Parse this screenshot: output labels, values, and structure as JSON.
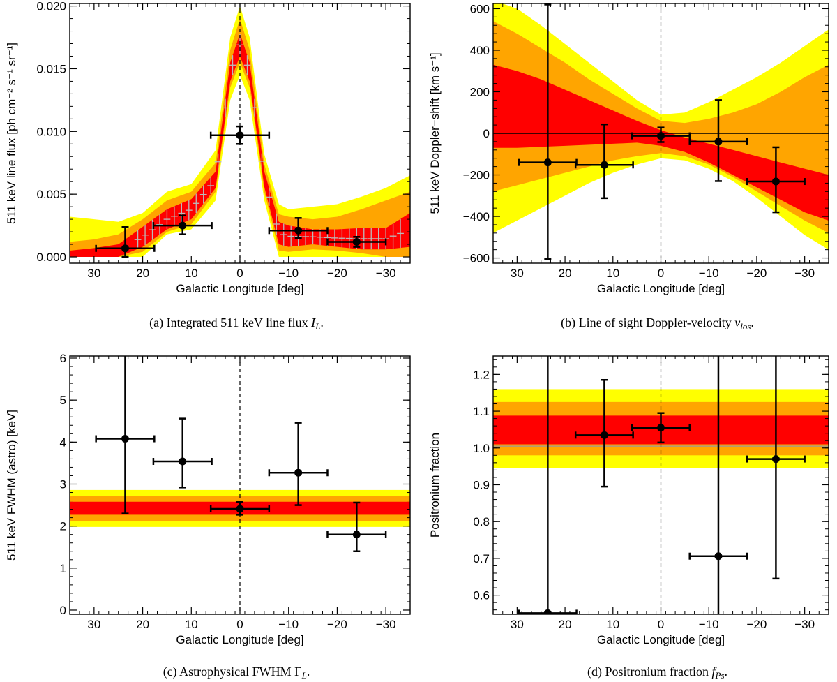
{
  "colors": {
    "yellow": "#ffff00",
    "orange": "#ffa500",
    "red": "#ff0000",
    "point": "#000000",
    "gray": "#bbbbbb"
  },
  "chart_data": [
    {
      "id": "a",
      "type": "line",
      "caption": "(a) Integrated 511 keV line flux I_L.",
      "xlabel": "Galactic Longitude [deg]",
      "ylabel": "511 keV line flux [ph cm⁻² s⁻¹ sr⁻¹]",
      "xlim": [
        35,
        -35
      ],
      "ylim": [
        -0.0005,
        0.0202
      ],
      "xticks": [
        30,
        20,
        10,
        0,
        -10,
        -20,
        -30
      ],
      "xtick_labels": [
        "30",
        "20",
        "10",
        "0",
        "−10",
        "−20",
        "−30"
      ],
      "yticks": [
        0.0,
        0.005,
        0.01,
        0.015,
        0.02
      ],
      "ytick_labels": [
        "0.000",
        "0.005",
        "0.010",
        "0.015",
        "0.020"
      ],
      "zero_line": false,
      "band_x": [
        35,
        30,
        25,
        20,
        15,
        10,
        5,
        2,
        0,
        -2,
        -5,
        -8,
        -10,
        -15,
        -20,
        -25,
        -30,
        -35
      ],
      "bands": {
        "yellow": {
          "lo": [
            0,
            0,
            0,
            0,
            0.0018,
            0.0022,
            0.0045,
            0.0125,
            0.0145,
            0.0125,
            0.0045,
            0,
            0,
            0,
            0,
            0,
            0,
            0
          ],
          "hi": [
            0.0032,
            0.003,
            0.0028,
            0.0035,
            0.0052,
            0.0058,
            0.0085,
            0.0175,
            0.02,
            0.0175,
            0.0082,
            0.0042,
            0.0038,
            0.004,
            0.0042,
            0.0048,
            0.0055,
            0.0065
          ]
        },
        "orange": {
          "lo": [
            0,
            0,
            0,
            0.0004,
            0.002,
            0.0026,
            0.0052,
            0.0135,
            0.0155,
            0.0135,
            0.0052,
            0.0005,
            0.0004,
            0.0006,
            0.0005,
            0.0003,
            0,
            0
          ],
          "hi": [
            0.0012,
            0.0014,
            0.0018,
            0.003,
            0.0045,
            0.0052,
            0.0075,
            0.0165,
            0.019,
            0.0165,
            0.0074,
            0.0034,
            0.0032,
            0.003,
            0.0032,
            0.0038,
            0.0045,
            0.0052
          ]
        },
        "red": {
          "lo": [
            0,
            0,
            0,
            0.0008,
            0.0022,
            0.003,
            0.0055,
            0.014,
            0.016,
            0.014,
            0.0056,
            0.001,
            0.0008,
            0.001,
            0.0008,
            0.0006,
            0.0006,
            0.0008
          ],
          "hi": [
            0.0005,
            0.0007,
            0.001,
            0.0024,
            0.0038,
            0.0046,
            0.0068,
            0.0155,
            0.0178,
            0.0155,
            0.0068,
            0.0028,
            0.0025,
            0.0022,
            0.0022,
            0.0023,
            0.0023,
            0.0035
          ]
        }
      },
      "points": [
        {
          "x": 23.6,
          "xerr": [
            6.0,
            6.0
          ],
          "y": 0.00068,
          "yerr": [
            0.00068,
            0.0017
          ]
        },
        {
          "x": 11.8,
          "xerr": [
            6.0,
            6.0
          ],
          "y": 0.0025,
          "yerr": [
            0.0007,
            0.0008
          ]
        },
        {
          "x": 0.0,
          "xerr": [
            6.0,
            6.0
          ],
          "y": 0.0097,
          "yerr": [
            0.0007,
            0.0007
          ]
        },
        {
          "x": -12.0,
          "xerr": [
            6.0,
            6.0
          ],
          "y": 0.0021,
          "yerr": [
            0.0006,
            0.001
          ]
        },
        {
          "x": -24.0,
          "xerr": [
            6.0,
            6.0
          ],
          "y": 0.0012,
          "yerr": [
            0.0004,
            0.0004
          ]
        }
      ]
    },
    {
      "id": "b",
      "type": "line",
      "caption": "(b) Line of sight Doppler-velocity v_los.",
      "xlabel": "Galactic Longitude [deg]",
      "ylabel": "511 keV Doppler−shift [km s⁻¹]",
      "xlim": [
        35,
        -35
      ],
      "ylim": [
        -625,
        625
      ],
      "xticks": [
        30,
        20,
        10,
        0,
        -10,
        -20,
        -30
      ],
      "xtick_labels": [
        "30",
        "20",
        "10",
        "0",
        "−10",
        "−20",
        "−30"
      ],
      "yticks": [
        -600,
        -400,
        -200,
        0,
        200,
        400,
        600
      ],
      "ytick_labels": [
        "−600",
        "−400",
        "−200",
        "0",
        "200",
        "400",
        "600"
      ],
      "zero_line": true,
      "band_x": [
        35,
        30,
        25,
        20,
        15,
        10,
        5,
        0,
        -5,
        -10,
        -15,
        -20,
        -25,
        -30,
        -35
      ],
      "bands": {
        "yellow": {
          "lo": [
            -480,
            -420,
            -360,
            -300,
            -240,
            -190,
            -150,
            -120,
            -130,
            -170,
            -230,
            -310,
            -400,
            -490,
            -560
          ],
          "hi": [
            640,
            600,
            520,
            430,
            340,
            250,
            160,
            90,
            100,
            150,
            210,
            270,
            340,
            420,
            500
          ]
        },
        "orange": {
          "lo": [
            -280,
            -250,
            -220,
            -190,
            -160,
            -130,
            -110,
            -95,
            -110,
            -150,
            -210,
            -280,
            -350,
            -420,
            -480
          ],
          "hi": [
            540,
            480,
            410,
            340,
            260,
            190,
            120,
            60,
            50,
            70,
            100,
            140,
            200,
            270,
            330
          ]
        },
        "red": {
          "lo": [
            -70,
            -70,
            -65,
            -60,
            -55,
            -50,
            -45,
            -60,
            -90,
            -140,
            -200,
            -260,
            -320,
            -380,
            -420
          ],
          "hi": [
            330,
            300,
            260,
            210,
            160,
            110,
            60,
            15,
            -20,
            -50,
            -80,
            -110,
            -140,
            -170,
            -200
          ]
        }
      },
      "points": [
        {
          "x": 23.6,
          "xerr": [
            6.0,
            6.0
          ],
          "y": -140,
          "yerr": [
            465,
            760
          ]
        },
        {
          "x": 11.8,
          "xerr": [
            6.0,
            6.0
          ],
          "y": -152,
          "yerr": [
            160,
            195
          ]
        },
        {
          "x": 0.0,
          "xerr": [
            6.0,
            6.0
          ],
          "y": -12,
          "yerr": [
            30,
            40
          ]
        },
        {
          "x": -12.0,
          "xerr": [
            6.0,
            6.0
          ],
          "y": -40,
          "yerr": [
            190,
            200
          ]
        },
        {
          "x": -24.0,
          "xerr": [
            6.0,
            6.0
          ],
          "y": -232,
          "yerr": [
            148,
            165
          ]
        }
      ]
    },
    {
      "id": "c",
      "type": "scatter",
      "caption": "(c) Astrophysical FWHM Γ_L.",
      "xlabel": "Galactic Longitude [deg]",
      "ylabel": "511 keV FWHM (astro) [keV]",
      "xlim": [
        35,
        -35
      ],
      "ylim": [
        -0.1,
        6.05
      ],
      "xticks": [
        30,
        20,
        10,
        0,
        -10,
        -20,
        -30
      ],
      "xtick_labels": [
        "30",
        "20",
        "10",
        "0",
        "−10",
        "−20",
        "−30"
      ],
      "yticks": [
        0,
        1,
        2,
        3,
        4,
        5,
        6
      ],
      "ytick_labels": [
        "0",
        "1",
        "2",
        "3",
        "4",
        "5",
        "6"
      ],
      "zero_line": false,
      "hbands": [
        {
          "color": "yellow",
          "lo": 1.98,
          "hi": 2.86
        },
        {
          "color": "orange",
          "lo": 2.12,
          "hi": 2.72
        },
        {
          "color": "red",
          "lo": 2.27,
          "hi": 2.58
        }
      ],
      "points": [
        {
          "x": 23.6,
          "xerr": [
            6.0,
            6.0
          ],
          "y": 4.08,
          "yerr": [
            1.78,
            2.0
          ]
        },
        {
          "x": 11.8,
          "xerr": [
            6.0,
            6.0
          ],
          "y": 3.54,
          "yerr": [
            0.62,
            1.02
          ]
        },
        {
          "x": 0.0,
          "xerr": [
            6.0,
            6.0
          ],
          "y": 2.41,
          "yerr": [
            0.14,
            0.17
          ]
        },
        {
          "x": -12.0,
          "xerr": [
            6.0,
            6.0
          ],
          "y": 3.27,
          "yerr": [
            0.77,
            1.19
          ]
        },
        {
          "x": -24.0,
          "xerr": [
            6.0,
            6.0
          ],
          "y": 1.8,
          "yerr": [
            0.4,
            0.76
          ]
        }
      ]
    },
    {
      "id": "d",
      "type": "scatter",
      "caption": "(d) Positronium fraction f_Ps.",
      "xlabel": "Galactic Longitude [deg]",
      "ylabel": "Positronium fraction",
      "xlim": [
        35,
        -35
      ],
      "ylim": [
        0.548,
        1.25
      ],
      "xticks": [
        30,
        20,
        10,
        0,
        -10,
        -20,
        -30
      ],
      "xtick_labels": [
        "30",
        "20",
        "10",
        "0",
        "−10",
        "−20",
        "−30"
      ],
      "yticks": [
        0.6,
        0.7,
        0.8,
        0.9,
        1.0,
        1.1,
        1.2
      ],
      "ytick_labels": [
        "0.6",
        "0.7",
        "0.8",
        "0.9",
        "1.0",
        "1.1",
        "1.2"
      ],
      "zero_line": false,
      "hbands": [
        {
          "color": "yellow",
          "lo": 0.945,
          "hi": 1.16
        },
        {
          "color": "orange",
          "lo": 0.98,
          "hi": 1.125
        },
        {
          "color": "red",
          "lo": 1.01,
          "hi": 1.088
        }
      ],
      "mean_line": 1.005,
      "points": [
        {
          "x": 23.6,
          "xerr": [
            6.0,
            6.0
          ],
          "y": 0.551,
          "yerr": [
            0.05,
            0.75
          ]
        },
        {
          "x": 11.8,
          "xerr": [
            6.0,
            6.0
          ],
          "y": 1.035,
          "yerr": [
            0.14,
            0.15
          ]
        },
        {
          "x": 0.0,
          "xerr": [
            6.0,
            6.0
          ],
          "y": 1.055,
          "yerr": [
            0.04,
            0.04
          ]
        },
        {
          "x": -12.0,
          "xerr": [
            6.0,
            6.0
          ],
          "y": 0.706,
          "yerr": [
            0.2,
            0.6
          ]
        },
        {
          "x": -24.0,
          "xerr": [
            6.0,
            6.0
          ],
          "y": 0.97,
          "yerr": [
            0.325,
            0.35
          ]
        }
      ]
    }
  ]
}
